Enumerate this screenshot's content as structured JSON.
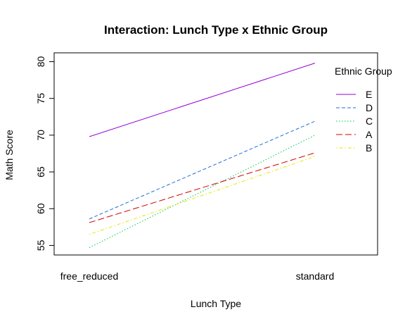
{
  "chart_data": {
    "type": "line",
    "title": "Interaction: Lunch Type x Ethnic Group",
    "xlabel": "Lunch Type",
    "ylabel": "Math Score",
    "categories": [
      "free_reduced",
      "standard"
    ],
    "ylim": [
      53.7,
      81.2
    ],
    "yticks": [
      55,
      60,
      65,
      70,
      75,
      80
    ],
    "legend": {
      "title": "Ethnic Group",
      "position": "top-right",
      "boxed": false
    },
    "series": [
      {
        "name": "E",
        "values": [
          69.8,
          79.8
        ],
        "color": "#9400D3",
        "dash": "solid"
      },
      {
        "name": "D",
        "values": [
          58.6,
          71.9
        ],
        "color": "#1E6FD8",
        "dash": "dashed"
      },
      {
        "name": "C",
        "values": [
          54.7,
          70.0
        ],
        "color": "#00C853",
        "dash": "dotted"
      },
      {
        "name": "A",
        "values": [
          58.1,
          67.6
        ],
        "color": "#D50000",
        "dash": "longdash"
      },
      {
        "name": "B",
        "values": [
          56.5,
          67.1
        ],
        "color": "#E6E600",
        "dash": "dotdash"
      }
    ]
  }
}
